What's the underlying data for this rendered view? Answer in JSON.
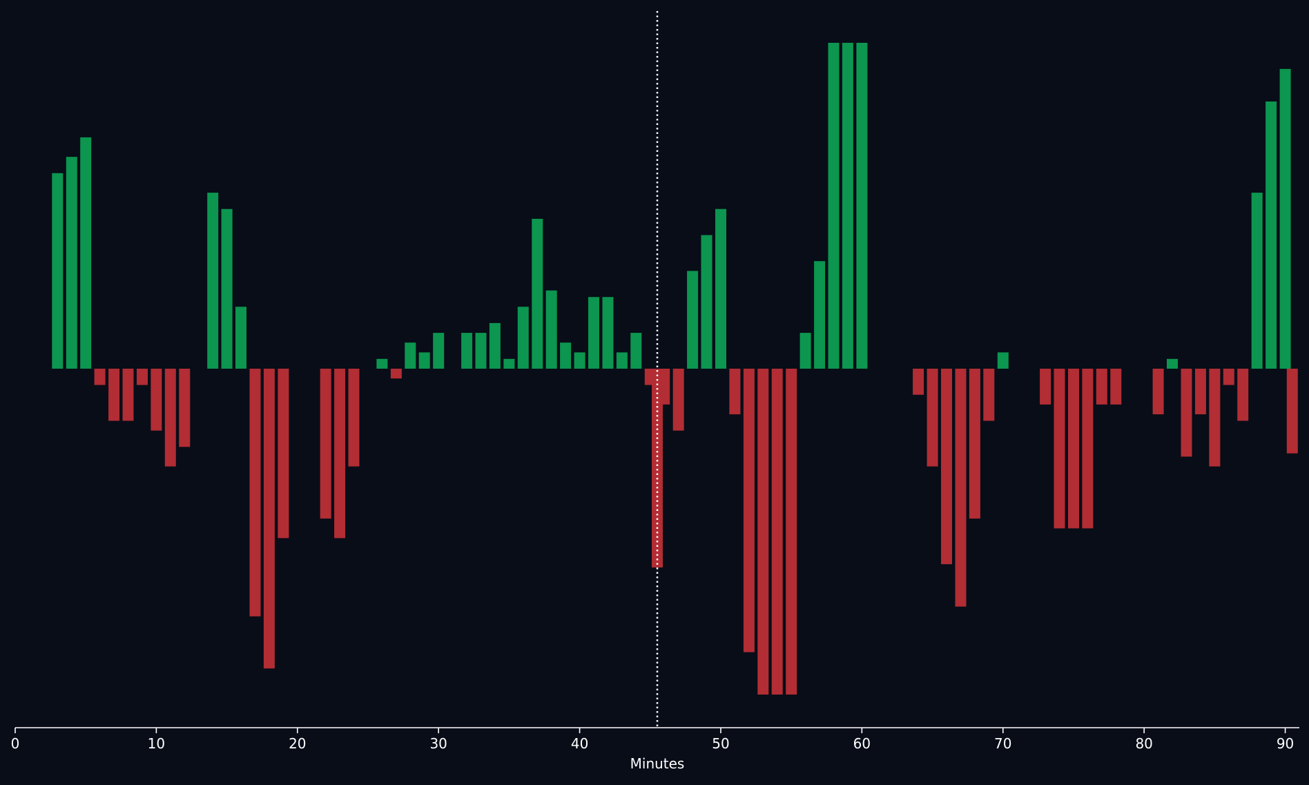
{
  "chart_data": {
    "type": "bar",
    "title": "",
    "xlabel": "Minutes",
    "ylabel": "",
    "xlim": [
      0,
      91
    ],
    "ylim": [
      -11,
      11
    ],
    "grid": false,
    "legend": "none",
    "x_ticks": [
      0,
      10,
      20,
      30,
      40,
      50,
      60,
      70,
      80,
      90
    ],
    "halftime_marker": 45.5,
    "colors": {
      "background": "#080d18",
      "positive": "#0c964f",
      "negative": "#b22d34",
      "axis": "#ffffff",
      "marker": "#ffffff"
    },
    "x": [
      3,
      4,
      5,
      6,
      7,
      8,
      9,
      10,
      11,
      12,
      14,
      15,
      16,
      17,
      18,
      19,
      22,
      23,
      24,
      26,
      27,
      28,
      29,
      30,
      32,
      33,
      34,
      35,
      36,
      37,
      38,
      39,
      40,
      41,
      42,
      43,
      44,
      45,
      45.5,
      46,
      47,
      48,
      49,
      50,
      51,
      52,
      53,
      54,
      55,
      56,
      57,
      58,
      59,
      60,
      64,
      65,
      66,
      67,
      68,
      69,
      70,
      73,
      74,
      75,
      76,
      77,
      78,
      81,
      82,
      83,
      84,
      85,
      86,
      87,
      88,
      89,
      90,
      90.5
    ],
    "values": [
      6.0,
      6.5,
      7.1,
      -0.5,
      -1.6,
      -1.6,
      -0.5,
      -1.9,
      -3.0,
      -2.4,
      5.4,
      4.9,
      1.9,
      -7.6,
      -9.2,
      -5.2,
      -4.6,
      -5.2,
      -3.0,
      0.3,
      -0.3,
      0.8,
      0.5,
      1.1,
      1.1,
      1.1,
      1.4,
      0.3,
      1.9,
      4.6,
      2.4,
      0.8,
      0.5,
      2.2,
      2.2,
      0.5,
      1.1,
      -0.5,
      -6.1,
      -1.1,
      -1.9,
      3.0,
      4.1,
      4.9,
      -1.4,
      -8.7,
      -10.0,
      -10.0,
      -10.0,
      1.1,
      3.3,
      10.0,
      10.0,
      10.0,
      -0.8,
      -3.0,
      -6.0,
      -7.3,
      -4.6,
      -1.6,
      0.5,
      -1.1,
      -4.9,
      -4.9,
      -4.9,
      -1.1,
      -1.1,
      -1.4,
      0.3,
      -2.7,
      -1.4,
      -3.0,
      -0.5,
      -1.6,
      5.4,
      8.2,
      9.2,
      -2.6
    ]
  }
}
